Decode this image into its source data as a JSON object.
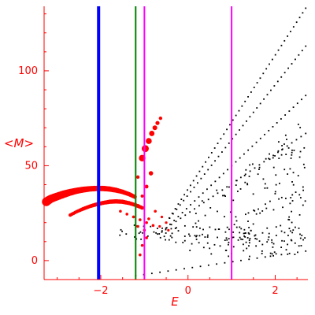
{
  "chart_data": {
    "type": "scatter",
    "title": "",
    "xlabel": "E",
    "ylabel": "<M>",
    "xlim": [
      -3.3,
      2.75
    ],
    "ylim": [
      -10,
      134
    ],
    "x_ticks": [
      -2,
      0,
      2
    ],
    "y_ticks": [
      0,
      50,
      100
    ],
    "x_minor_step": 0.5,
    "y_minor_step": 10,
    "colors": {
      "axes": "#ff0000",
      "data": "#ff0000",
      "background_points": "#000000"
    },
    "vertical_lines": [
      {
        "x": -2.05,
        "color": "#0000ff"
      },
      {
        "x": -1.2,
        "color": "#008000"
      },
      {
        "x": -1.0,
        "color": "#ff00ff"
      },
      {
        "x": 1.0,
        "color": "#ff00ff"
      }
    ],
    "series": [
      {
        "role": "background",
        "color": "#000000",
        "diagonal_rays": [
          {
            "x_start": -0.5,
            "y_start": 20,
            "x_end": 2.7,
            "y_end": 133
          },
          {
            "x_start": -0.5,
            "y_start": 20,
            "x_end": 2.7,
            "y_end": 113
          },
          {
            "x_start": -0.6,
            "y_start": 15,
            "x_end": 2.7,
            "y_end": 87
          },
          {
            "x_start": -0.7,
            "y_start": 14,
            "x_end": 2.7,
            "y_end": 67
          }
        ],
        "lower_band": {
          "x_start": -1.6,
          "y_start": 15,
          "x_end": 2.7,
          "y_end": 12
        },
        "bottom_ray": {
          "x_start": -1.2,
          "y_start": -8,
          "x_end": 2.7,
          "y_end": 5
        },
        "scatter_region": {
          "x_from": -0.3,
          "x_to": 2.7,
          "y_from": 2,
          "y_to": 75
        }
      },
      {
        "role": "upper arc",
        "color": "#ff0000",
        "points": [
          [
            -3.25,
            31
          ],
          [
            -3.15,
            32.5
          ],
          [
            -3.0,
            33.8
          ],
          [
            -2.85,
            35
          ],
          [
            -2.7,
            36
          ],
          [
            -2.55,
            36.8
          ],
          [
            -2.4,
            37.4
          ],
          [
            -2.25,
            37.8
          ],
          [
            -2.1,
            38
          ],
          [
            -1.95,
            38
          ],
          [
            -1.8,
            37.7
          ],
          [
            -1.65,
            37.1
          ],
          [
            -1.5,
            36.2
          ],
          [
            -1.35,
            35
          ],
          [
            -1.22,
            33.6
          ]
        ],
        "sizes": [
          5.5,
          5.2,
          5,
          4.8,
          4.4,
          4,
          3.8,
          3.6,
          3.5,
          3.5,
          3.4,
          3.2,
          3,
          2.8,
          2.6
        ]
      },
      {
        "role": "lower arc",
        "color": "#ff0000",
        "points": [
          [
            -2.7,
            24
          ],
          [
            -2.55,
            25.8
          ],
          [
            -2.4,
            27.3
          ],
          [
            -2.25,
            28.6
          ],
          [
            -2.1,
            29.6
          ],
          [
            -1.95,
            30.4
          ],
          [
            -1.8,
            31
          ],
          [
            -1.65,
            31.2
          ],
          [
            -1.5,
            31
          ],
          [
            -1.35,
            30.3
          ],
          [
            -1.2,
            29.2
          ],
          [
            -1.05,
            27.8
          ]
        ],
        "sizes": [
          2.2,
          2.2,
          2.4,
          2.4,
          2.6,
          2.6,
          2.8,
          2.8,
          2.8,
          2.6,
          2.5,
          2.4
        ]
      },
      {
        "role": "inner curve",
        "color": "#ff0000",
        "points": [
          [
            -1.55,
            26
          ],
          [
            -1.4,
            24.5
          ],
          [
            -1.25,
            23
          ],
          [
            -1.1,
            21.5
          ],
          [
            -0.95,
            20
          ],
          [
            -0.8,
            18.5
          ]
        ],
        "sizes": [
          1.8,
          1.8,
          1.8,
          1.8,
          1.8,
          1.8
        ]
      },
      {
        "role": "rising branch",
        "color": "#ff0000",
        "points": [
          [
            -1.05,
            54
          ],
          [
            -0.98,
            59
          ],
          [
            -0.9,
            63
          ],
          [
            -0.83,
            67
          ],
          [
            -0.76,
            70
          ],
          [
            -0.7,
            72.5
          ],
          [
            -0.63,
            75
          ]
        ],
        "sizes": [
          4.2,
          4.5,
          3.8,
          3.4,
          3,
          2.6,
          2.2
        ]
      },
      {
        "role": "scattered",
        "color": "#ff0000",
        "points": [
          [
            -0.85,
            46
          ],
          [
            -0.95,
            39
          ],
          [
            -1.15,
            44
          ],
          [
            -1.05,
            34
          ],
          [
            -1.15,
            29
          ],
          [
            -0.75,
            26
          ],
          [
            -0.9,
            22
          ],
          [
            -1.15,
            18
          ],
          [
            -1.0,
            16
          ],
          [
            -0.95,
            12
          ],
          [
            -1.05,
            8
          ],
          [
            -1.1,
            3
          ],
          [
            -0.6,
            23
          ],
          [
            -0.5,
            20
          ],
          [
            -0.45,
            16
          ],
          [
            -0.65,
            18
          ]
        ],
        "sizes": [
          2.8,
          2.4,
          2.2,
          2,
          2,
          1.8,
          1.8,
          1.8,
          1.8,
          1.8,
          1.8,
          1.8,
          1.6,
          1.6,
          1.6,
          1.6
        ]
      }
    ]
  }
}
